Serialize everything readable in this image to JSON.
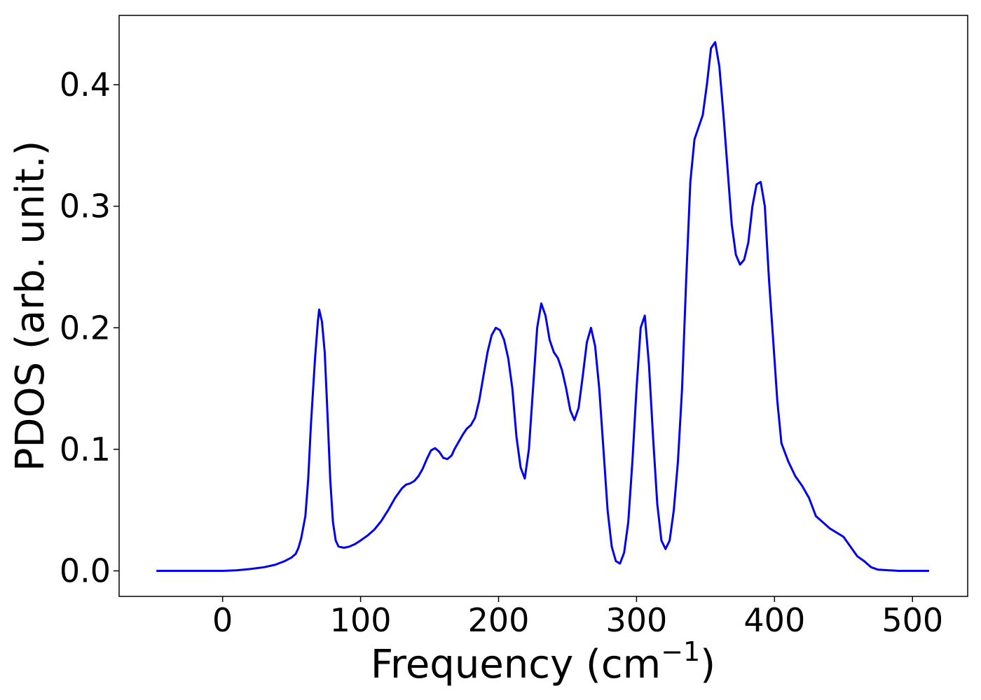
{
  "chart_data": {
    "type": "line",
    "xlabel": "Frequency (cm",
    "xlabel_sup": "−1",
    "xlabel_suffix": ")",
    "ylabel": "PDOS (arb. unit.)",
    "xlim": [
      -75,
      540
    ],
    "ylim": [
      -0.021,
      0.457
    ],
    "xticks": [
      0,
      100,
      200,
      300,
      400,
      500
    ],
    "xtick_labels": [
      "0",
      "100",
      "200",
      "300",
      "400",
      "500"
    ],
    "yticks": [
      0.0,
      0.1,
      0.2,
      0.3,
      0.4
    ],
    "ytick_labels": [
      "0.0",
      "0.1",
      "0.2",
      "0.3",
      "0.4"
    ],
    "grid": false,
    "series": [
      {
        "color": "#0000ee",
        "x": [
          -48,
          -20,
          0,
          10,
          20,
          30,
          38,
          45,
          50,
          53,
          55,
          57,
          60,
          62,
          64,
          67,
          69,
          70,
          72,
          74,
          76,
          78,
          80,
          82,
          84,
          88,
          92,
          96,
          100,
          105,
          110,
          115,
          120,
          125,
          130,
          133,
          136,
          139,
          142,
          145,
          148,
          151,
          154,
          157,
          160,
          163,
          166,
          168,
          171,
          174,
          177,
          180,
          183,
          186,
          189,
          192,
          195,
          198,
          201,
          204,
          207,
          210,
          213,
          216,
          219,
          222,
          225,
          228,
          231,
          234,
          237,
          240,
          243,
          246,
          249,
          252,
          255,
          258,
          261,
          264,
          267,
          270,
          273,
          276,
          279,
          282,
          285,
          288,
          291,
          294,
          297,
          300,
          303,
          306,
          309,
          312,
          315,
          318,
          321,
          324,
          327,
          330,
          333,
          336,
          339,
          342,
          345,
          348,
          351,
          354,
          357,
          360,
          363,
          366,
          369,
          372,
          375,
          378,
          381,
          384,
          387,
          390,
          393,
          396,
          399,
          402,
          405,
          410,
          415,
          420,
          425,
          430,
          440,
          450,
          455,
          460,
          465,
          468,
          470,
          475,
          490,
          512
        ],
        "y": [
          0,
          0,
          0,
          0.0005,
          0.0015,
          0.003,
          0.005,
          0.008,
          0.011,
          0.014,
          0.019,
          0.027,
          0.045,
          0.075,
          0.12,
          0.175,
          0.205,
          0.215,
          0.205,
          0.18,
          0.13,
          0.075,
          0.04,
          0.025,
          0.02,
          0.019,
          0.02,
          0.022,
          0.025,
          0.029,
          0.034,
          0.041,
          0.05,
          0.06,
          0.068,
          0.071,
          0.072,
          0.074,
          0.078,
          0.084,
          0.092,
          0.099,
          0.101,
          0.098,
          0.093,
          0.092,
          0.095,
          0.1,
          0.106,
          0.112,
          0.117,
          0.12,
          0.126,
          0.14,
          0.16,
          0.18,
          0.194,
          0.2,
          0.198,
          0.19,
          0.175,
          0.15,
          0.11,
          0.085,
          0.076,
          0.1,
          0.15,
          0.2,
          0.22,
          0.21,
          0.19,
          0.18,
          0.175,
          0.165,
          0.15,
          0.132,
          0.124,
          0.134,
          0.16,
          0.188,
          0.2,
          0.185,
          0.15,
          0.1,
          0.05,
          0.02,
          0.008,
          0.006,
          0.015,
          0.04,
          0.09,
          0.15,
          0.2,
          0.21,
          0.17,
          0.11,
          0.055,
          0.025,
          0.018,
          0.025,
          0.05,
          0.09,
          0.15,
          0.24,
          0.32,
          0.355,
          0.365,
          0.375,
          0.4,
          0.43,
          0.435,
          0.415,
          0.375,
          0.33,
          0.285,
          0.26,
          0.252,
          0.256,
          0.27,
          0.3,
          0.318,
          0.32,
          0.3,
          0.24,
          0.19,
          0.14,
          0.105,
          0.09,
          0.078,
          0.07,
          0.06,
          0.045,
          0.035,
          0.028,
          0.02,
          0.012,
          0.008,
          0.005,
          0.003,
          0.001,
          0,
          0
        ]
      }
    ]
  }
}
